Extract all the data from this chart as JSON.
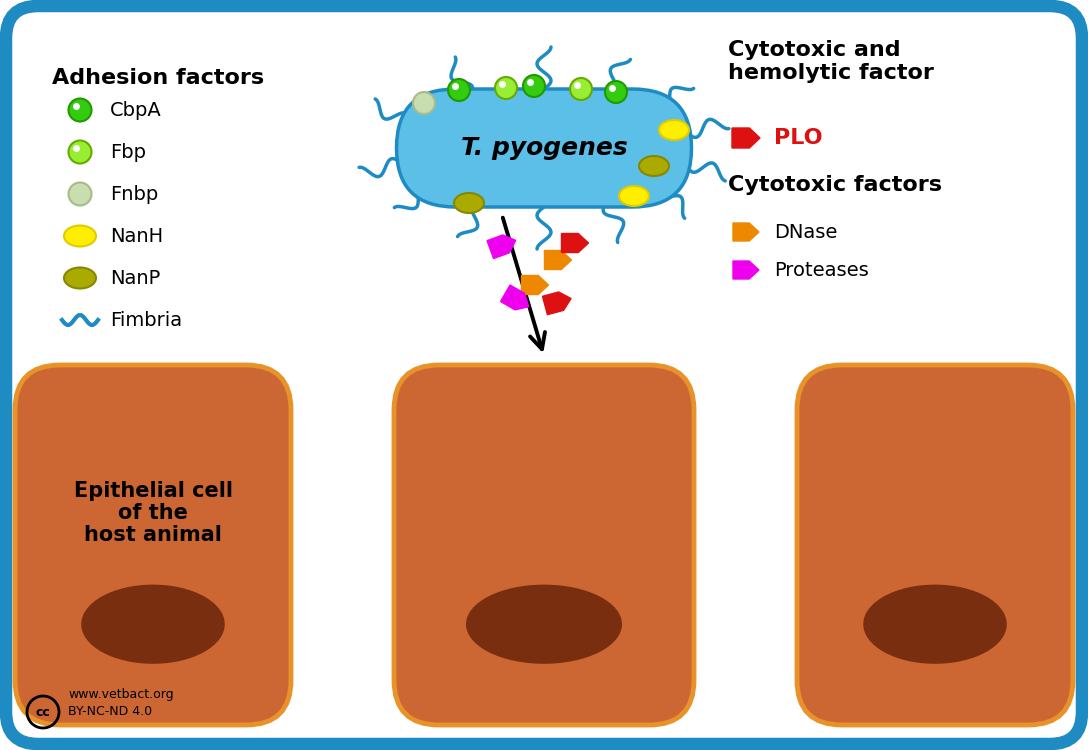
{
  "bg_color": "#ffffff",
  "border_color": "#1e8bc3",
  "bacteria_color": "#5bbfe8",
  "bacteria_outline": "#1e8bc3",
  "bacteria_label": "T. pyogenes",
  "fimbria_color": "#1e8bc3",
  "cbpA_color": "#33cc11",
  "cbpA_outline": "#229900",
  "fbp_color": "#99ee33",
  "fbp_outline": "#66aa00",
  "fnbp_color": "#c8ddb0",
  "fnbp_outline": "#aabb88",
  "nanH_color": "#ffee00",
  "nanH_outline": "#ddcc00",
  "nanP_color": "#aaaa00",
  "nanP_outline": "#888800",
  "cell_color": "#cc6633",
  "cell_outline": "#e8922a",
  "cell_dark": "#7a2e10",
  "plo_color": "#dd1111",
  "dnase_color": "#ee8800",
  "protease_color": "#ee00ee",
  "adhesion_title": "Adhesion factors",
  "cytotoxic_hemo_title": "Cytotoxic and\nhemolytic factor",
  "cytotoxic_title": "Cytotoxic factors",
  "plo_label": "PLO",
  "dnase_label": "DNase",
  "protease_label": "Proteases",
  "cell_label_line1": "Epithelial cell",
  "cell_label_line2": "of the",
  "cell_label_line3": "host animal",
  "copyright": "www.vetbact.org\nBY-NC-ND 4.0"
}
